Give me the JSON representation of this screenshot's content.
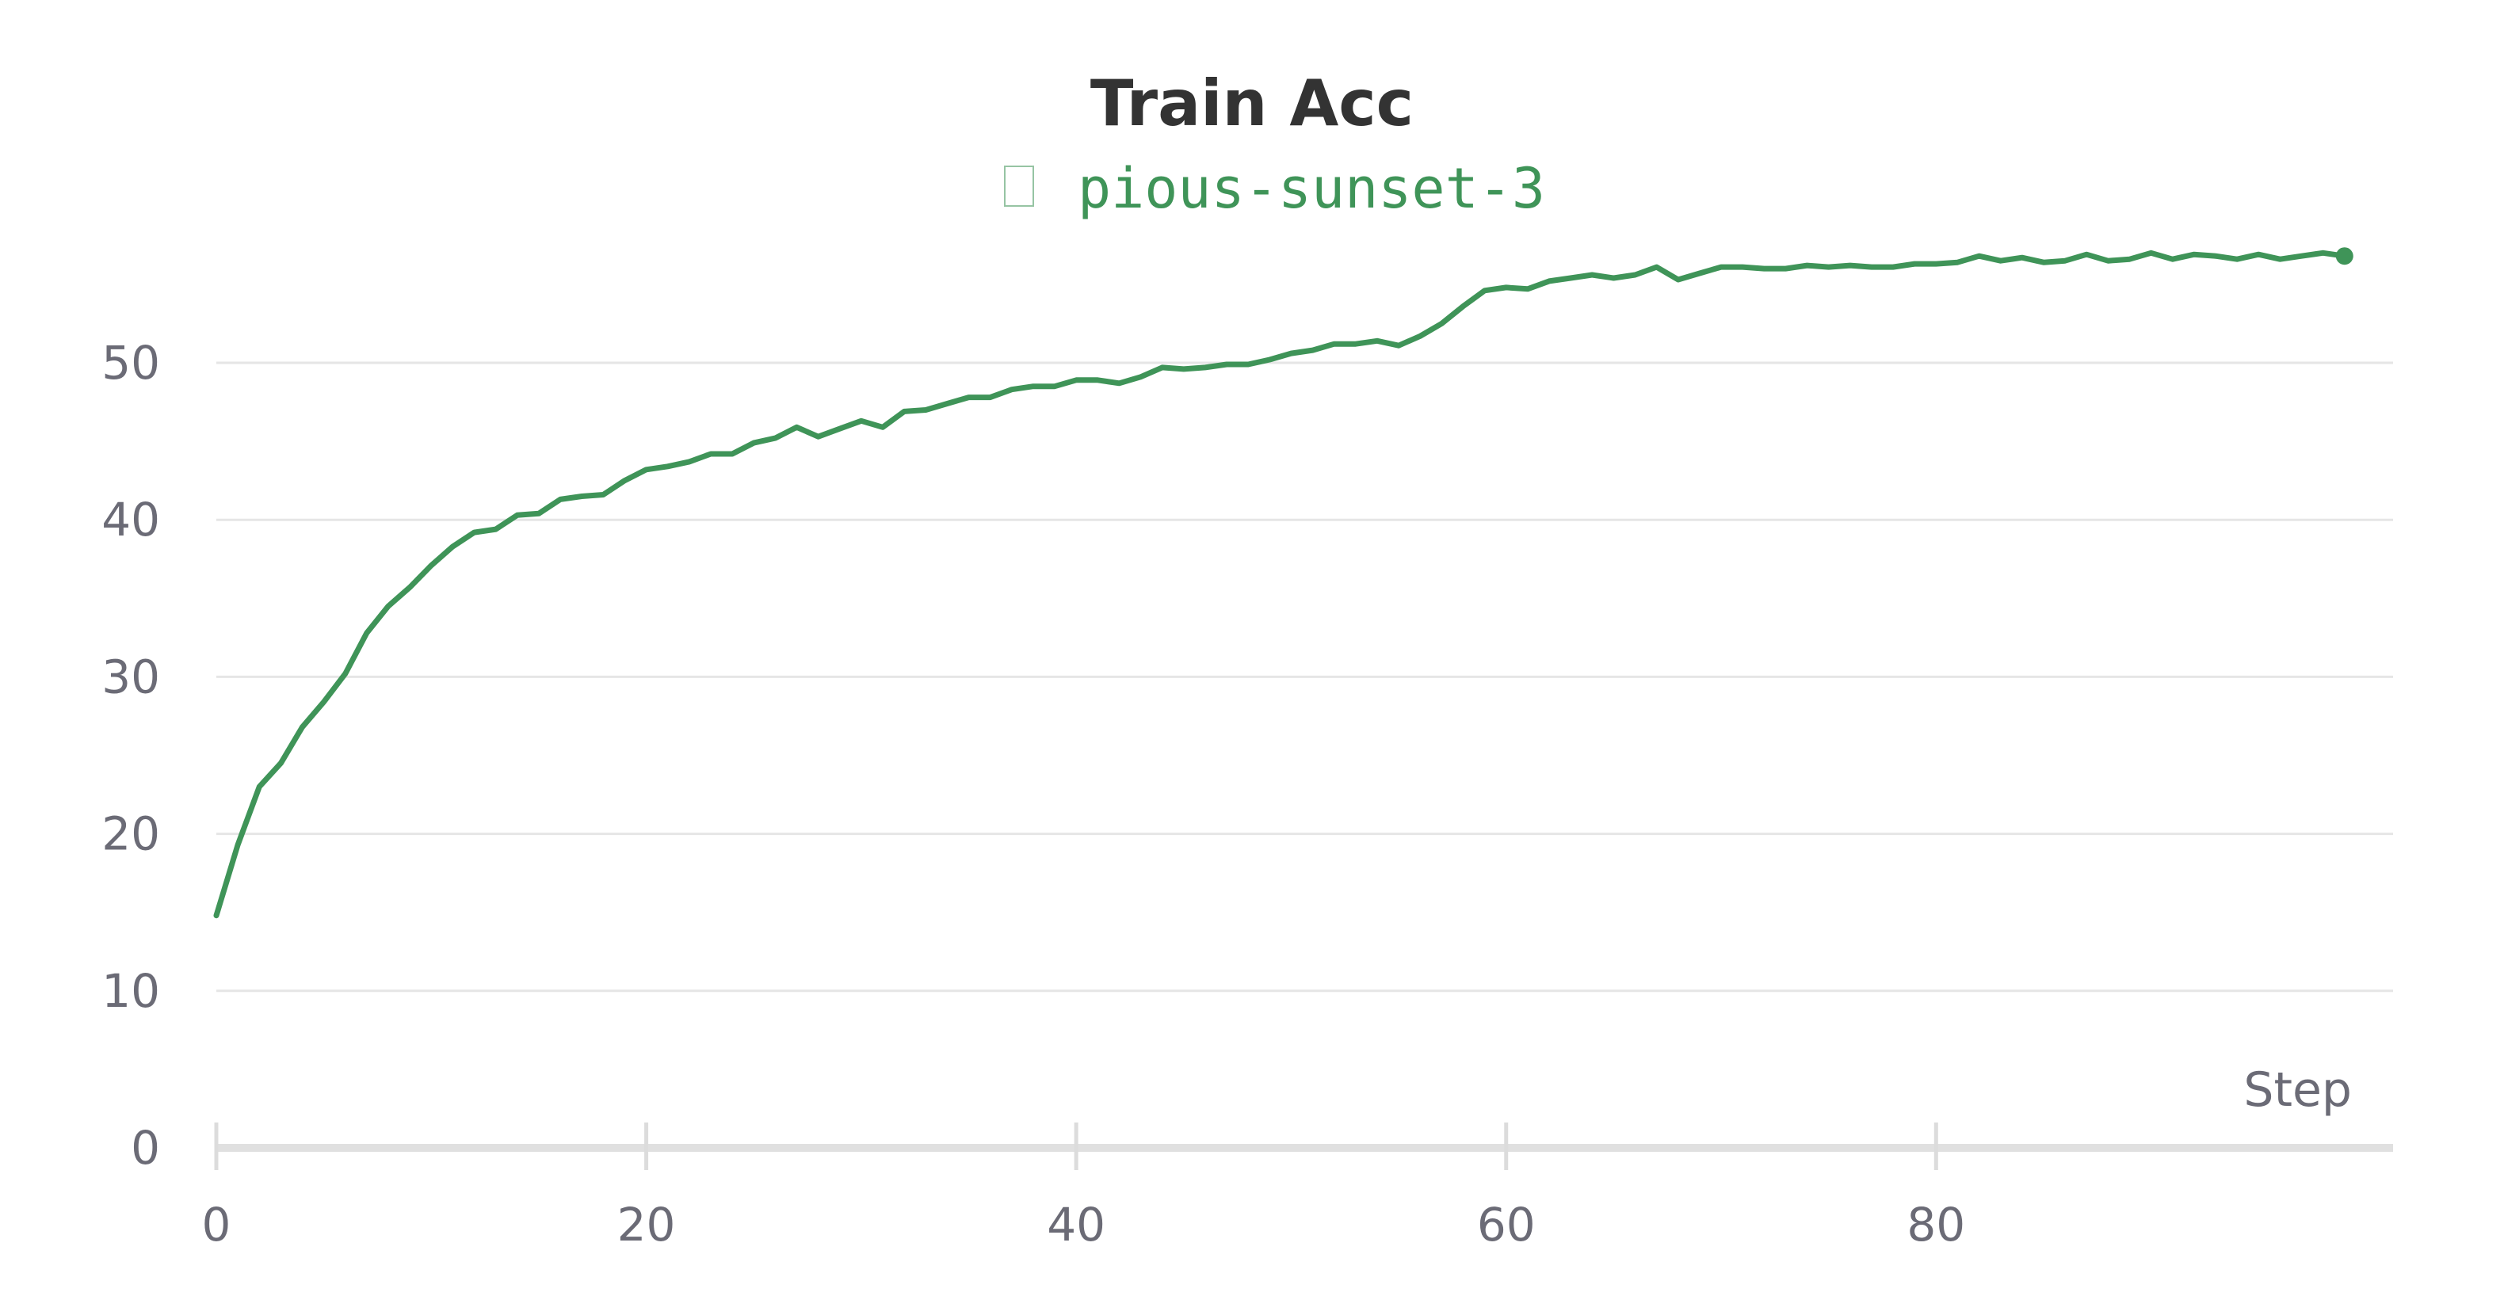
{
  "chart_data": {
    "type": "line",
    "title": "Train Acc",
    "xlabel": "Step",
    "ylabel": "",
    "xlim": [
      0,
      99
    ],
    "ylim": [
      0,
      58
    ],
    "x_ticks": [
      0,
      20,
      40,
      60,
      80
    ],
    "y_ticks": [
      0,
      10,
      20,
      30,
      40,
      50
    ],
    "grid": true,
    "legend_position": "top-center",
    "series": [
      {
        "name": "pious-sunset-3",
        "color": "#3f9458",
        "x": [
          0,
          1,
          2,
          3,
          4,
          5,
          6,
          7,
          8,
          9,
          10,
          11,
          12,
          13,
          14,
          15,
          16,
          17,
          18,
          19,
          20,
          21,
          22,
          23,
          24,
          25,
          26,
          27,
          28,
          29,
          30,
          31,
          32,
          33,
          34,
          35,
          36,
          37,
          38,
          39,
          40,
          41,
          42,
          43,
          44,
          45,
          46,
          47,
          48,
          49,
          50,
          51,
          52,
          53,
          54,
          55,
          56,
          57,
          58,
          59,
          60,
          61,
          62,
          63,
          64,
          65,
          66,
          67,
          68,
          69,
          70,
          71,
          72,
          73,
          74,
          75,
          76,
          77,
          78,
          79,
          80,
          81,
          82,
          83,
          84,
          85,
          86,
          87,
          88,
          89,
          90,
          91,
          92,
          93,
          94,
          95,
          96,
          97,
          98,
          99
        ],
        "values": [
          14.8,
          19.3,
          23.0,
          24.5,
          26.8,
          28.4,
          30.2,
          32.8,
          34.5,
          35.7,
          37.1,
          38.3,
          39.2,
          39.4,
          40.3,
          40.4,
          41.3,
          41.5,
          41.6,
          42.5,
          43.2,
          43.4,
          43.7,
          44.2,
          44.2,
          44.9,
          45.2,
          45.9,
          45.3,
          45.8,
          46.3,
          45.9,
          46.9,
          47.0,
          47.4,
          47.8,
          47.8,
          48.3,
          48.5,
          48.5,
          48.9,
          48.9,
          48.7,
          49.1,
          49.7,
          49.6,
          49.7,
          49.9,
          49.9,
          50.2,
          50.6,
          50.8,
          51.2,
          51.2,
          51.4,
          51.1,
          51.7,
          52.5,
          53.6,
          54.6,
          54.8,
          54.7,
          55.2,
          55.4,
          55.6,
          55.4,
          55.6,
          56.1,
          55.3,
          55.7,
          56.1,
          56.1,
          56.0,
          56.0,
          56.2,
          56.1,
          56.2,
          56.1,
          56.1,
          56.3,
          56.3,
          56.4,
          56.8,
          56.5,
          56.7,
          56.4,
          56.5,
          56.9,
          56.5,
          56.6,
          57.0,
          56.6,
          56.9,
          56.8,
          56.6,
          56.9,
          56.6,
          56.8,
          57.0,
          56.8
        ]
      }
    ]
  }
}
